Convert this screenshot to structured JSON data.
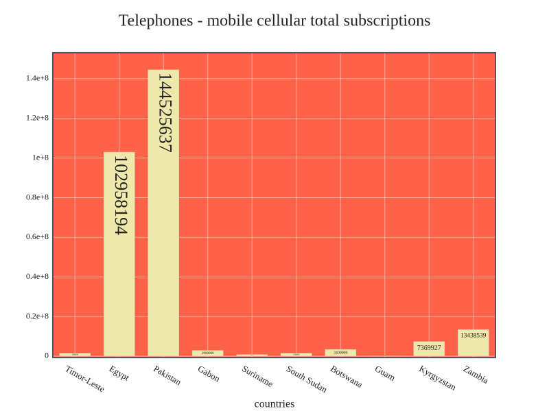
{
  "chart_data": {
    "type": "bar",
    "title": "Telephones - mobile cellular total subscriptions",
    "x_label": "countries",
    "categories": [
      "Timor-Leste",
      "Egypt",
      "Pakistan",
      "Gabon",
      "Suriname",
      "South Sudan",
      "Botswana",
      "Guam",
      "Kyrgyzstan",
      "Zambia"
    ],
    "values": [
      1486000,
      102958194,
      144525637,
      2900000,
      800000,
      1500000,
      3400000,
      98000,
      7369927,
      13438539
    ],
    "color": "#eee8aa",
    "background": "#ff6347",
    "ylim": [
      -700000,
      153100000
    ],
    "yticks": [
      0,
      {
        "value": 20000000,
        "label": "0.2e+8"
      },
      {
        "value": 40000000,
        "label": "0.4e+8"
      },
      {
        "value": 60000000,
        "label": "0.6e+8"
      },
      {
        "value": 80000000,
        "label": "0.8e+8"
      },
      {
        "value": 100000000,
        "label": "1e+8"
      },
      {
        "value": 120000000,
        "label": "1.2e+8"
      },
      {
        "value": 140000000,
        "label": "1.4e+8"
      }
    ],
    "grid": true
  }
}
